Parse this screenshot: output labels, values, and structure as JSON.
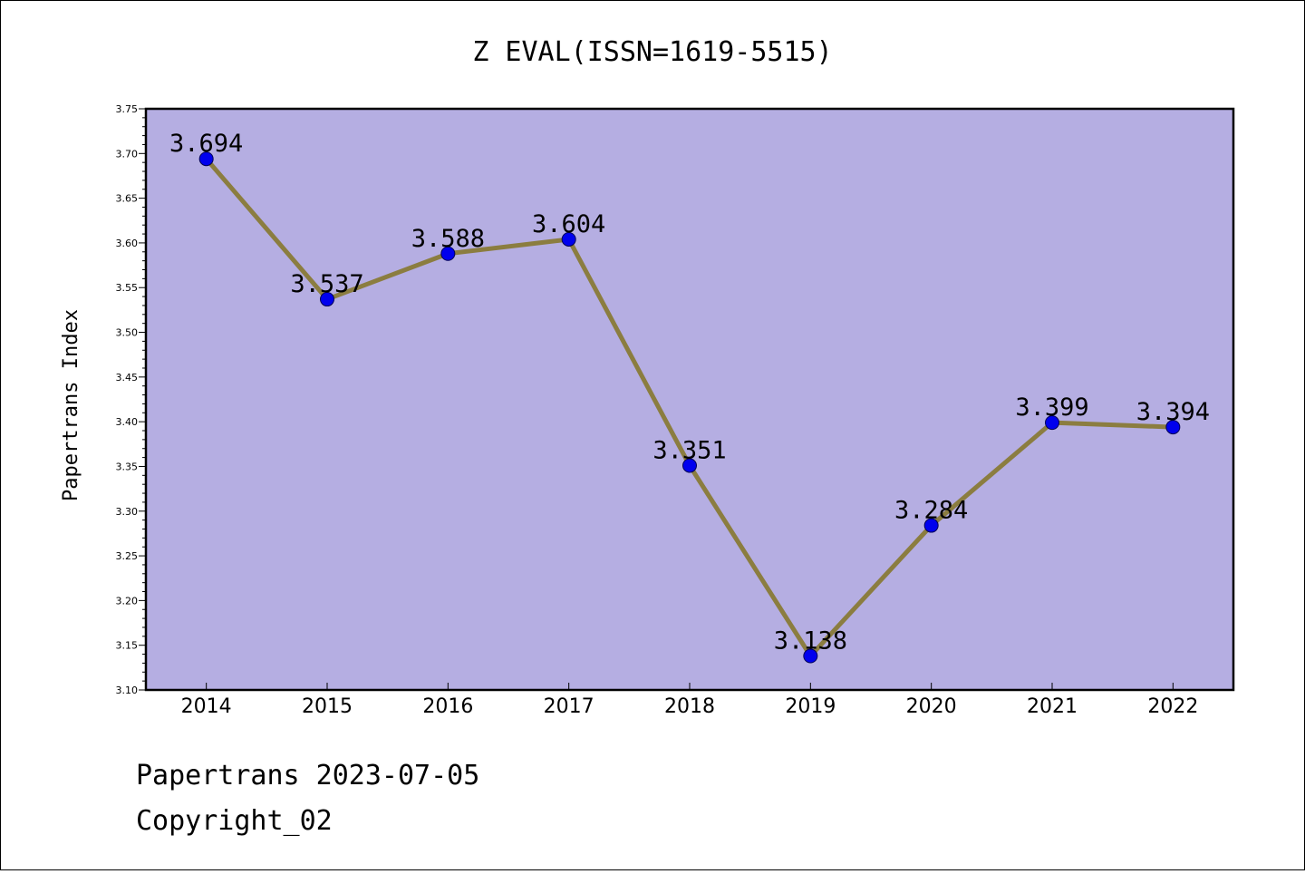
{
  "chart_data": {
    "type": "line",
    "title": "Z EVAL(ISSN=1619-5515)",
    "ylabel": "Papertrans Index",
    "xlabel": "",
    "categories": [
      "2014",
      "2015",
      "2016",
      "2017",
      "2018",
      "2019",
      "2020",
      "2021",
      "2022"
    ],
    "series": [
      {
        "values": [
          3.694,
          3.537,
          3.588,
          3.604,
          3.351,
          3.138,
          3.284,
          3.399,
          3.394
        ]
      }
    ],
    "data_labels": [
      "3.694",
      "3.537",
      "3.588",
      "3.604",
      "3.351",
      "3.138",
      "3.284",
      "3.399",
      "3.394"
    ],
    "ylim": [
      3.1,
      3.75
    ],
    "yticks": [
      "3.10",
      "3.15",
      "3.20",
      "3.25",
      "3.30",
      "3.35",
      "3.40",
      "3.45",
      "3.50",
      "3.55",
      "3.60",
      "3.65",
      "3.70",
      "3.75"
    ],
    "grid": false,
    "legend": "none",
    "colors": {
      "plot_background": "#b5aee2",
      "line": "#8b7d40",
      "marker": "#0000ee"
    }
  },
  "footer": {
    "line1": "Papertrans 2023-07-05",
    "line2": "Copyright_02"
  }
}
